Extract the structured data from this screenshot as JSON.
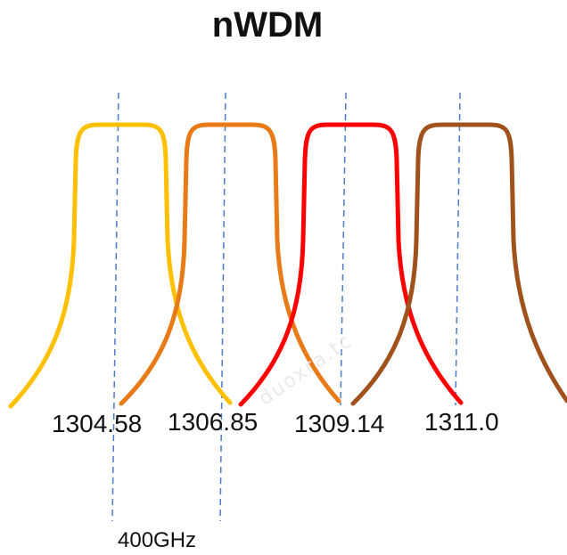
{
  "title": "nWDM",
  "channels": [
    {
      "label": "1304.58",
      "color": "#FFC000"
    },
    {
      "label": "1306.85",
      "color": "#E87A17"
    },
    {
      "label": "1309.14",
      "color": "#FF0000"
    },
    {
      "label": "1311.0",
      "color": "#A0521C"
    }
  ],
  "spacing_label": "400GHz",
  "watermark": "duoxra.tc",
  "guide_color": "#4A7BC8"
}
